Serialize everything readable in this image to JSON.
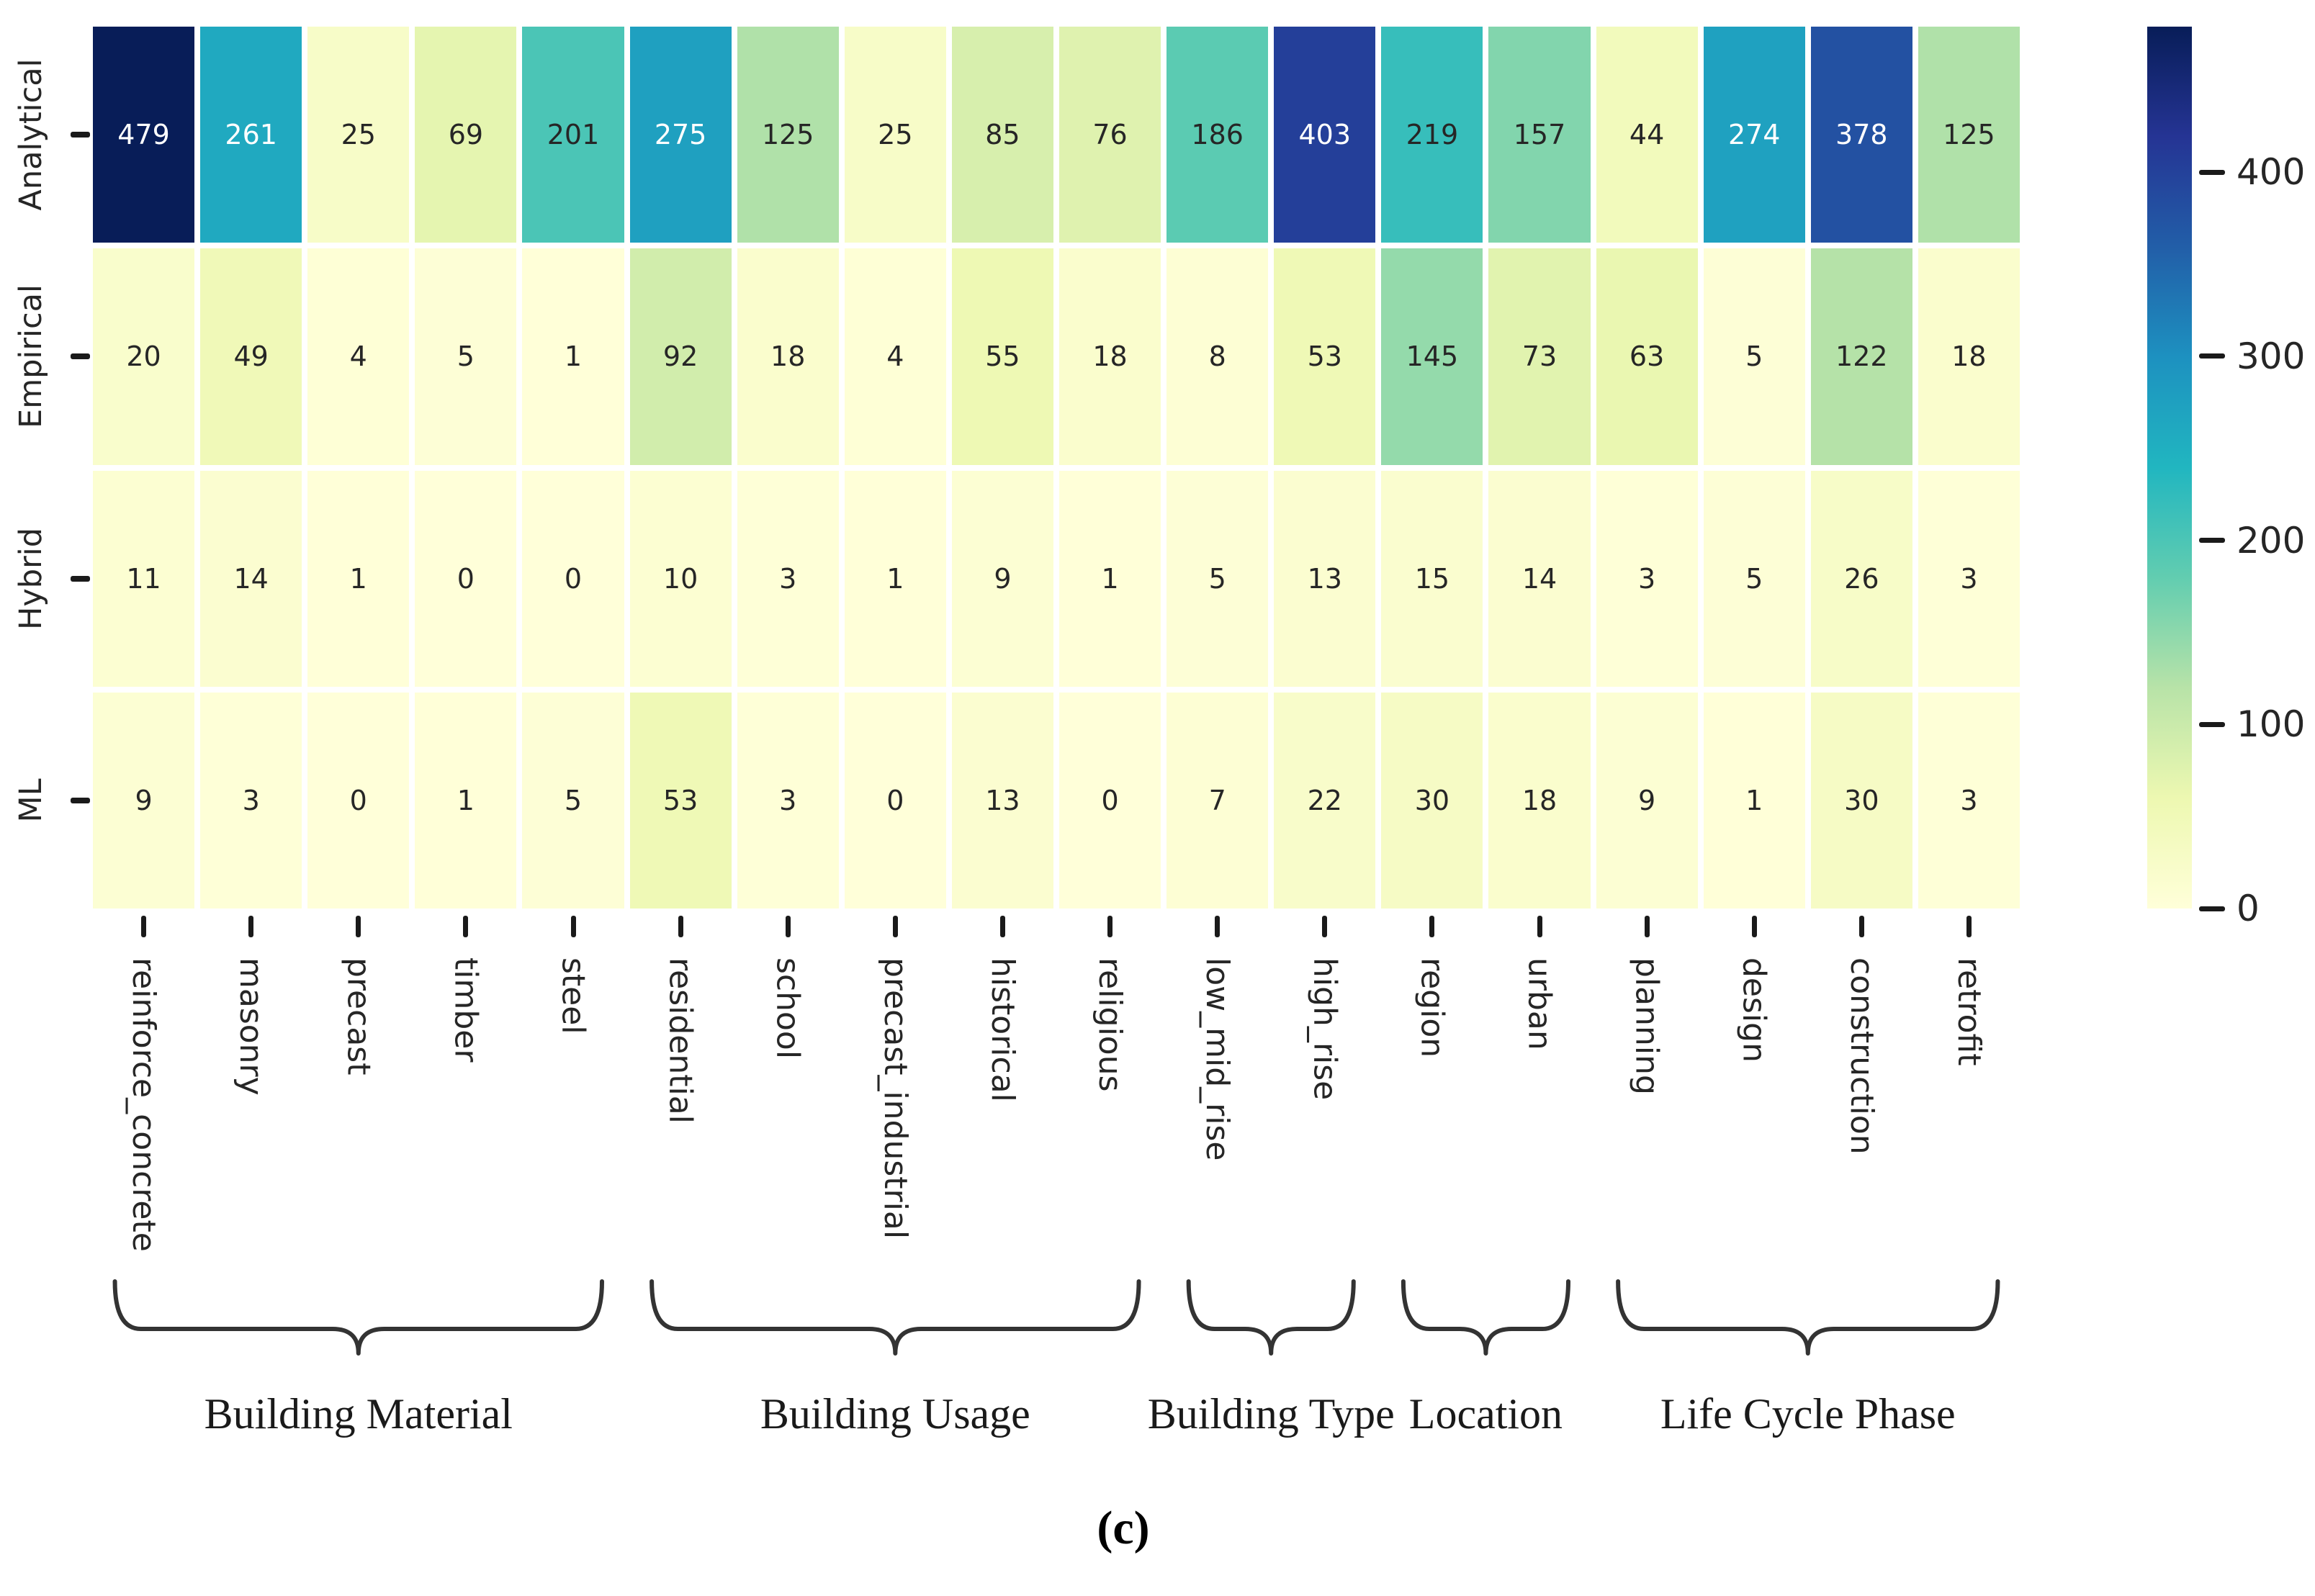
{
  "figure": {
    "caption": "(c)"
  },
  "chart_data": {
    "type": "heatmap",
    "title": "",
    "rows": [
      "Analytical",
      "Empirical",
      "Hybrid",
      "ML"
    ],
    "columns": [
      "reinforce_concrete",
      "masonry",
      "precast",
      "timber",
      "steel",
      "residential",
      "school",
      "precast_industrial",
      "historical",
      "religious",
      "low_mid_rise",
      "high_rise",
      "region",
      "urban",
      "planning",
      "design",
      "construction",
      "retrofit"
    ],
    "values": [
      [
        479,
        261,
        25,
        69,
        201,
        275,
        125,
        25,
        85,
        76,
        186,
        403,
        219,
        157,
        44,
        274,
        378,
        125
      ],
      [
        20,
        49,
        4,
        5,
        1,
        92,
        18,
        4,
        55,
        18,
        8,
        53,
        145,
        73,
        63,
        5,
        122,
        18
      ],
      [
        11,
        14,
        1,
        0,
        0,
        10,
        3,
        1,
        9,
        1,
        5,
        13,
        15,
        14,
        3,
        5,
        26,
        3
      ],
      [
        9,
        3,
        0,
        1,
        5,
        53,
        3,
        0,
        13,
        0,
        7,
        22,
        30,
        18,
        9,
        1,
        30,
        3
      ]
    ],
    "column_groups": [
      {
        "label": "Building Material",
        "start": 0,
        "end": 4
      },
      {
        "label": "Building Usage",
        "start": 5,
        "end": 9
      },
      {
        "label": "Building Type",
        "start": 10,
        "end": 11
      },
      {
        "label": "Location",
        "start": 12,
        "end": 13
      },
      {
        "label": "Life Cycle Phase",
        "start": 14,
        "end": 17
      }
    ],
    "colorbar": {
      "vmin": 0,
      "vmax": 479,
      "ticks": [
        0,
        100,
        200,
        300,
        400
      ],
      "position": "right",
      "color_stops": [
        [
          0,
          "#ffffd9"
        ],
        [
          0.125,
          "#edf8b1"
        ],
        [
          0.25,
          "#b8e3a8"
        ],
        [
          0.375,
          "#62cdb0"
        ],
        [
          0.5,
          "#21b6c0"
        ],
        [
          0.625,
          "#1d91c0"
        ],
        [
          0.75,
          "#225ea8"
        ],
        [
          0.875,
          "#253494"
        ],
        [
          1,
          "#081d58"
        ]
      ]
    },
    "annotation_colors": {
      "dark": "#262626",
      "light": "#ffffff"
    },
    "grid_line_color": "#ffffff"
  }
}
